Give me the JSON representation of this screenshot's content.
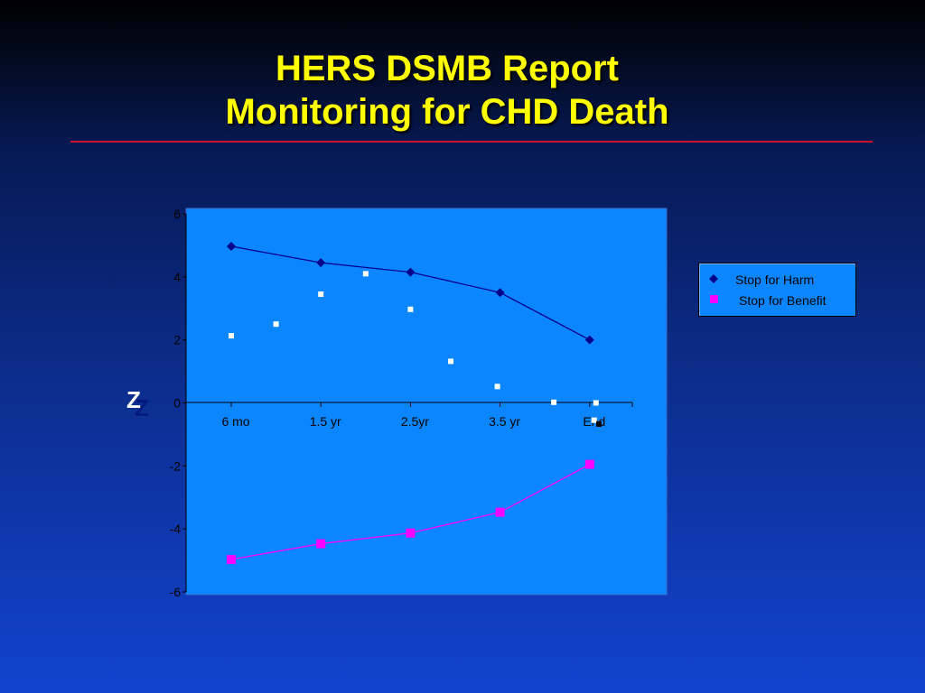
{
  "slide": {
    "title_line1": "HERS DSMB Report",
    "title_line2": "Monitoring for CHD Death",
    "z_label": "Z",
    "colors": {
      "title": "#ffff00",
      "divider": "#cc1133",
      "plot_area": "#0b86ff",
      "harm_series": "#00008b",
      "benefit_series": "#ff00ff",
      "observed_points": "#ffffff"
    }
  },
  "chart_data": {
    "type": "line",
    "categories": [
      "6 mo",
      "1.5 yr",
      "2.5yr",
      "3.5 yr",
      "End"
    ],
    "ylim": [
      -6,
      6
    ],
    "y_ticks": [
      "6",
      "4",
      "2",
      "0",
      "-2",
      "-4",
      "-6"
    ],
    "grid": false,
    "legend_position": "right",
    "series": [
      {
        "name": "Stop for Harm",
        "marker": "diamond",
        "color": "#00008b",
        "x": [
          1,
          2,
          3,
          4,
          5
        ],
        "values": [
          4.97,
          4.45,
          4.15,
          3.5,
          2.0
        ]
      },
      {
        "name": "Stop for Benefit",
        "marker": "square",
        "color": "#ff00ff",
        "x": [
          1,
          2,
          3,
          4,
          5
        ],
        "values": [
          -4.97,
          -4.47,
          -4.13,
          -3.47,
          -1.95
        ]
      },
      {
        "name": "",
        "marker": "small-square",
        "color": "#ffffff",
        "lines": false,
        "x": [
          1,
          1.5,
          2,
          2.5,
          3,
          3.45,
          3.97,
          4.6,
          5.07,
          5.05
        ],
        "values": [
          2.13,
          2.5,
          3.45,
          4.1,
          2.97,
          1.32,
          0.52,
          0.02,
          0.0,
          -0.55
        ]
      }
    ],
    "legend": [
      "Stop for Harm",
      "Stop for Benefit"
    ]
  }
}
